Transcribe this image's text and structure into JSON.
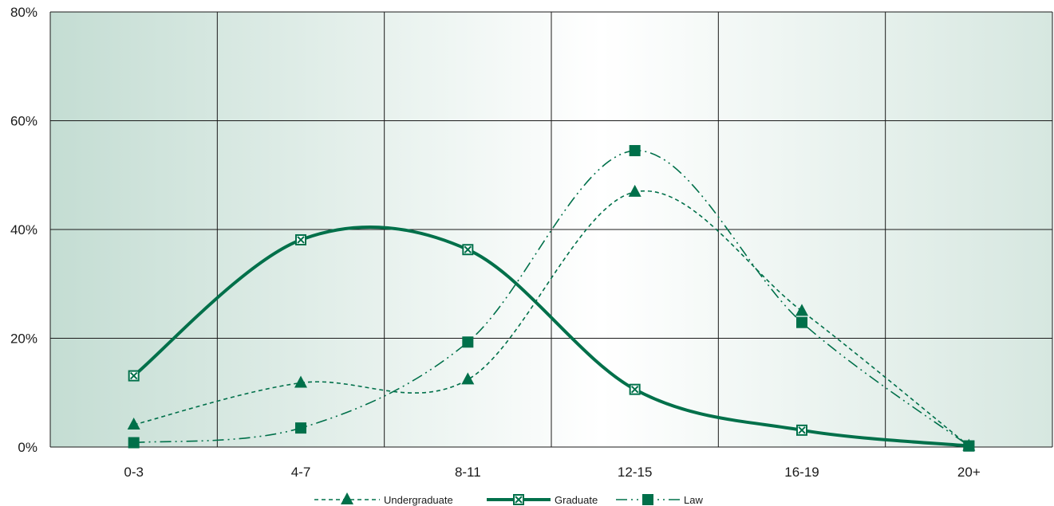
{
  "colors": {
    "series": "#00704a",
    "grid": "#1a1a1a",
    "bg_dark": "#c4ddd3",
    "bg_light": "#ffffff"
  },
  "chart_data": {
    "type": "line",
    "title": "",
    "xlabel": "",
    "ylabel": "",
    "categories": [
      "0-3",
      "4-7",
      "8-11",
      "12-15",
      "16-19",
      "20+"
    ],
    "ylim": [
      0,
      80
    ],
    "y_ticks": [
      "0%",
      "20%",
      "40%",
      "60%",
      "80%"
    ],
    "grid": true,
    "legend_position": "bottom",
    "series": [
      {
        "name": "Undergraduate",
        "values": [
          4.1,
          11.8,
          12.4,
          46.9,
          25.0,
          0.2
        ],
        "marker": "triangle",
        "line_style": "dashed"
      },
      {
        "name": "Graduate",
        "values": [
          13.1,
          38.1,
          36.3,
          10.6,
          3.1,
          0.2
        ],
        "marker": "square-x",
        "line_style": "solid-thick"
      },
      {
        "name": "Law",
        "values": [
          0.8,
          3.5,
          19.3,
          54.5,
          22.9,
          0.2
        ],
        "marker": "square",
        "line_style": "dash-dot"
      }
    ]
  }
}
